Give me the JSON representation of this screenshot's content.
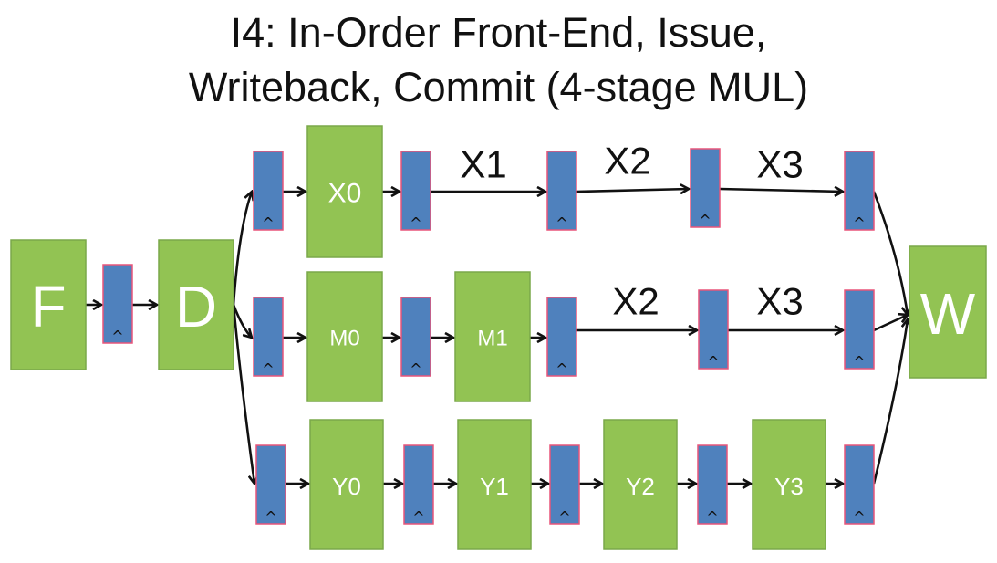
{
  "title": {
    "line1": "I4: In-Order Front-End, Issue,",
    "line2": "Writeback, Commit (4-stage MUL)"
  },
  "colors": {
    "stage_fill": "#92c353",
    "stage_stroke": "#7aa84a",
    "latch_fill": "#4f81bd",
    "latch_edge": "#e8557a",
    "arrow": "#111111"
  },
  "stages": {
    "fetch": "F",
    "decode": "D",
    "writeback": "W",
    "x0": "X0",
    "m0": "M0",
    "m1": "M1",
    "y0": "Y0",
    "y1": "Y1",
    "y2": "Y2",
    "y3": "Y3"
  },
  "pipe_labels": {
    "top_x1": "X1",
    "top_x2": "X2",
    "top_x3": "X3",
    "mid_x2": "X2",
    "mid_x3": "X3"
  },
  "clock_symbol": "^"
}
